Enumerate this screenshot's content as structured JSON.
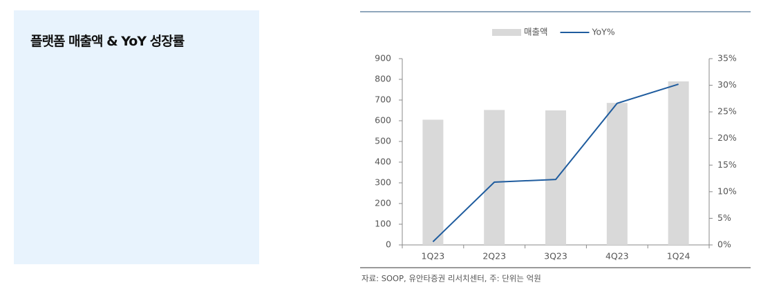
{
  "panel": {
    "title": "플랫폼 매출액 & YoY 성장률"
  },
  "chart_data": {
    "type": "bar-line",
    "categories": [
      "1Q23",
      "2Q23",
      "3Q23",
      "4Q23",
      "1Q24"
    ],
    "series": [
      {
        "name": "매출액",
        "color": "#d9d9d9",
        "type": "bar",
        "values": [
          605,
          652,
          650,
          686,
          790
        ]
      },
      {
        "name": "YoY%",
        "color": "#1f5c9e",
        "type": "line",
        "axis": "y2",
        "values": [
          0.6,
          11.8,
          12.3,
          26.6,
          30.2
        ]
      }
    ],
    "ylim": [
      0,
      900
    ],
    "yticks": [
      0,
      100,
      200,
      300,
      400,
      500,
      600,
      700,
      800,
      900
    ],
    "y2lim": [
      0,
      35
    ],
    "y2ticks": [
      {
        "value": 0,
        "label": "0%"
      },
      {
        "value": 5,
        "label": "5%"
      },
      {
        "value": 10,
        "label": "10%"
      },
      {
        "value": 15,
        "label": "15%"
      },
      {
        "value": 20,
        "label": "20%"
      },
      {
        "value": 25,
        "label": "25%"
      },
      {
        "value": 30,
        "label": "30%"
      },
      {
        "value": 35,
        "label": "35%"
      }
    ],
    "legend": "top",
    "source": "자료: SOOP, 유안타증권 리서치센터, 주: 단위는 억원"
  }
}
